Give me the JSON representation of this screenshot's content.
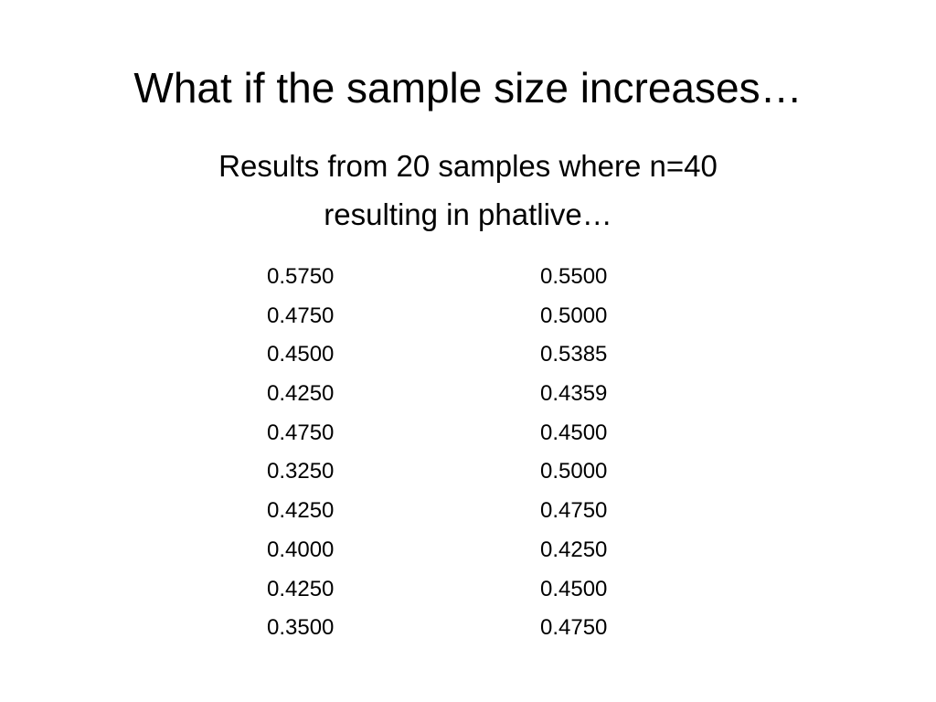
{
  "slide": {
    "title": "What if the sample size increases…",
    "subtitle": [
      "Results from 20 samples where n=40",
      "resulting in phatlive…"
    ],
    "columns": [
      [
        "0.5750",
        "0.4750",
        "0.4500",
        "0.4250",
        "0.4750",
        "0.3250",
        "0.4250",
        "0.4000",
        "0.4250",
        "0.3500"
      ],
      [
        "0.5500",
        "0.5000",
        "0.5385",
        "0.4359",
        "0.4500",
        "0.5000",
        "0.4750",
        "0.4250",
        "0.4500",
        "0.4750"
      ]
    ]
  }
}
